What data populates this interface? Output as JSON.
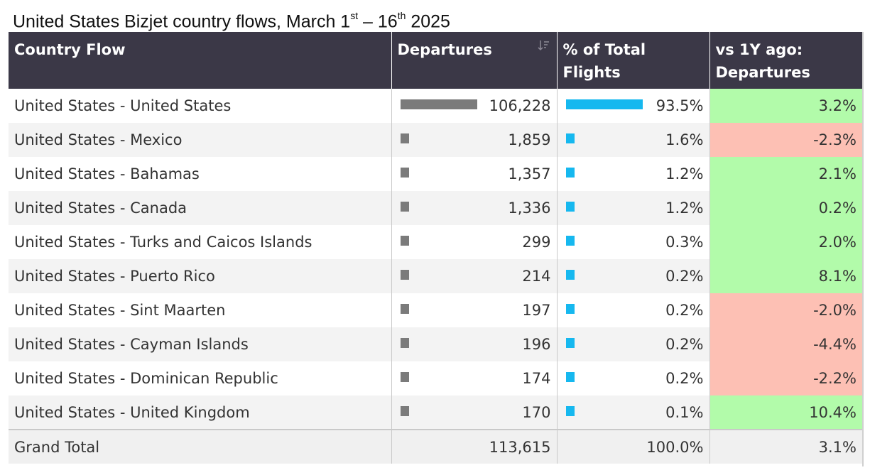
{
  "title": {
    "prefix": "United States Bizjet country flows, March 1",
    "sup1": "st",
    "middle": " – 16",
    "sup2": "th",
    "suffix": " 2025"
  },
  "columns": {
    "country_flow": "Country Flow",
    "departures": "Departures",
    "pct_total": "% of Total Flights",
    "vs_1y": "vs 1Y ago: Departures"
  },
  "icons": {
    "sort": "sort-descending-icon"
  },
  "colors": {
    "header_bg": "#3b3847",
    "departures_bar": "#7b7b7b",
    "pct_bar": "#16b8ef",
    "positive": "#b2fbaa",
    "negative": "#fdc0b4"
  },
  "chart_data": {
    "type": "table",
    "rows": [
      {
        "flow": "United States - United States",
        "departures": 106228,
        "departures_label": "106,228",
        "pct": 93.5,
        "pct_label": "93.5%",
        "yoy": 3.2,
        "yoy_label": "3.2%"
      },
      {
        "flow": "United States - Mexico",
        "departures": 1859,
        "departures_label": "1,859",
        "pct": 1.6,
        "pct_label": "1.6%",
        "yoy": -2.3,
        "yoy_label": "-2.3%"
      },
      {
        "flow": "United States - Bahamas",
        "departures": 1357,
        "departures_label": "1,357",
        "pct": 1.2,
        "pct_label": "1.2%",
        "yoy": 2.1,
        "yoy_label": "2.1%"
      },
      {
        "flow": "United States - Canada",
        "departures": 1336,
        "departures_label": "1,336",
        "pct": 1.2,
        "pct_label": "1.2%",
        "yoy": 0.2,
        "yoy_label": "0.2%"
      },
      {
        "flow": "United States - Turks and Caicos Islands",
        "departures": 299,
        "departures_label": "299",
        "pct": 0.3,
        "pct_label": "0.3%",
        "yoy": 2.0,
        "yoy_label": "2.0%"
      },
      {
        "flow": "United States - Puerto Rico",
        "departures": 214,
        "departures_label": "214",
        "pct": 0.2,
        "pct_label": "0.2%",
        "yoy": 8.1,
        "yoy_label": "8.1%"
      },
      {
        "flow": "United States - Sint Maarten",
        "departures": 197,
        "departures_label": "197",
        "pct": 0.2,
        "pct_label": "0.2%",
        "yoy": -2.0,
        "yoy_label": "-2.0%"
      },
      {
        "flow": "United States - Cayman Islands",
        "departures": 196,
        "departures_label": "196",
        "pct": 0.2,
        "pct_label": "0.2%",
        "yoy": -4.4,
        "yoy_label": "-4.4%"
      },
      {
        "flow": "United States - Dominican Republic",
        "departures": 174,
        "departures_label": "174",
        "pct": 0.2,
        "pct_label": "0.2%",
        "yoy": -2.2,
        "yoy_label": "-2.2%"
      },
      {
        "flow": "United States - United Kingdom",
        "departures": 170,
        "departures_label": "170",
        "pct": 0.1,
        "pct_label": "0.1%",
        "yoy": 10.4,
        "yoy_label": "10.4%"
      }
    ],
    "total": {
      "label": "Grand Total",
      "departures": 113615,
      "departures_label": "113,615",
      "pct": 100.0,
      "pct_label": "100.0%",
      "yoy": 3.1,
      "yoy_label": "3.1%"
    }
  }
}
